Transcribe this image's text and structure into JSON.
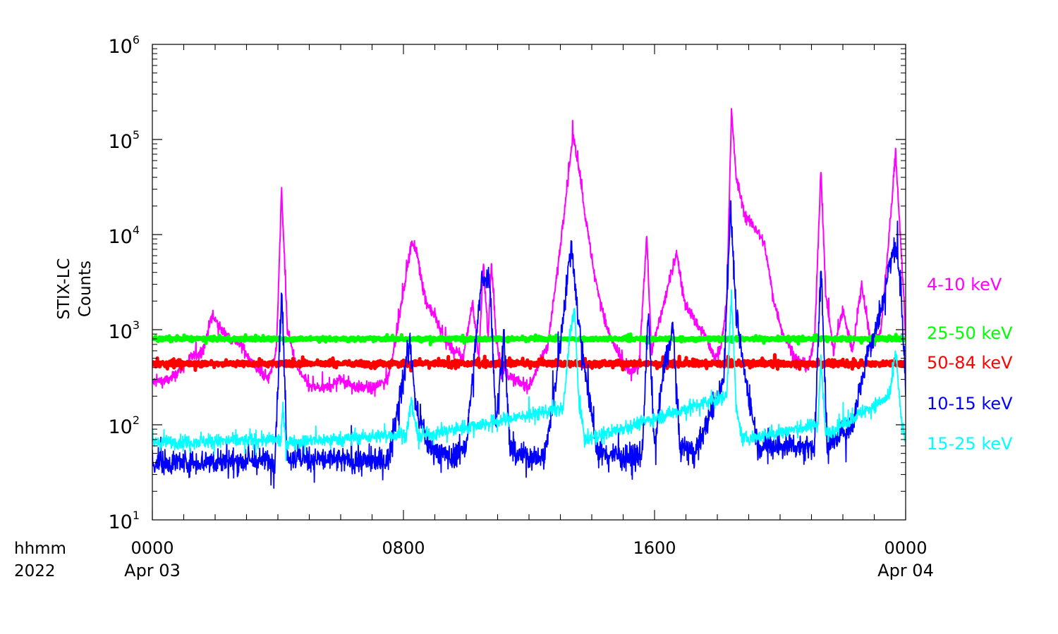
{
  "chart_data": {
    "type": "line",
    "ylabel": [
      "STIX-LC",
      "Counts"
    ],
    "yscale": "log",
    "ylim": [
      10,
      1000000
    ],
    "yticks": [
      {
        "base": "10",
        "exp": "1",
        "value": 10
      },
      {
        "base": "10",
        "exp": "2",
        "value": 100
      },
      {
        "base": "10",
        "exp": "3",
        "value": 1000
      },
      {
        "base": "10",
        "exp": "4",
        "value": 10000
      },
      {
        "base": "10",
        "exp": "5",
        "value": 100000
      },
      {
        "base": "10",
        "exp": "6",
        "value": 1000000
      }
    ],
    "xlim_hours": [
      0,
      24
    ],
    "xaxis_row_labels": [
      "hhmm",
      "2022"
    ],
    "xticks": [
      {
        "hour": 0,
        "time": "0000",
        "date": "Apr 03"
      },
      {
        "hour": 8,
        "time": "0800",
        "date": ""
      },
      {
        "hour": 16,
        "time": "1600",
        "date": ""
      },
      {
        "hour": 24,
        "time": "0000",
        "date": "Apr 04"
      }
    ],
    "grid": false,
    "legend": "right, outside plot",
    "series": [
      {
        "name": "4-10 keV",
        "color": "#ff00ff",
        "base": 300,
        "points": [
          [
            0.0,
            280
          ],
          [
            0.6,
            300
          ],
          [
            1.2,
            500
          ],
          [
            1.6,
            600
          ],
          [
            1.9,
            1400
          ],
          [
            2.3,
            900
          ],
          [
            2.8,
            700
          ],
          [
            3.3,
            400
          ],
          [
            3.7,
            300
          ],
          [
            3.95,
            600
          ],
          [
            4.12,
            30000
          ],
          [
            4.3,
            1000
          ],
          [
            4.6,
            400
          ],
          [
            5.0,
            250
          ],
          [
            5.5,
            240
          ],
          [
            6.0,
            300
          ],
          [
            6.5,
            250
          ],
          [
            7.0,
            240
          ],
          [
            7.5,
            300
          ],
          [
            7.8,
            1000
          ],
          [
            8.1,
            4000
          ],
          [
            8.25,
            8500
          ],
          [
            8.45,
            6000
          ],
          [
            8.7,
            2000
          ],
          [
            9.0,
            1400
          ],
          [
            9.3,
            800
          ],
          [
            9.6,
            600
          ],
          [
            9.9,
            500
          ],
          [
            10.2,
            2000
          ],
          [
            10.4,
            500
          ],
          [
            10.55,
            5000
          ],
          [
            10.7,
            800
          ],
          [
            10.8,
            5000
          ],
          [
            10.95,
            900
          ],
          [
            11.1,
            400
          ],
          [
            11.5,
            300
          ],
          [
            12.0,
            250
          ],
          [
            12.6,
            700
          ],
          [
            12.9,
            4000
          ],
          [
            13.2,
            30000
          ],
          [
            13.4,
            110000
          ],
          [
            13.6,
            50000
          ],
          [
            13.8,
            15000
          ],
          [
            14.1,
            3500
          ],
          [
            14.5,
            1000
          ],
          [
            14.9,
            500
          ],
          [
            15.2,
            350
          ],
          [
            15.5,
            400
          ],
          [
            15.75,
            10000
          ],
          [
            15.9,
            600
          ],
          [
            16.2,
            1400
          ],
          [
            16.5,
            3500
          ],
          [
            16.7,
            6500
          ],
          [
            16.95,
            2000
          ],
          [
            17.3,
            1200
          ],
          [
            17.6,
            900
          ],
          [
            17.9,
            500
          ],
          [
            18.1,
            600
          ],
          [
            18.3,
            2000
          ],
          [
            18.45,
            200000
          ],
          [
            18.6,
            40000
          ],
          [
            18.9,
            15000
          ],
          [
            19.2,
            12000
          ],
          [
            19.5,
            8000
          ],
          [
            19.8,
            2000
          ],
          [
            20.1,
            900
          ],
          [
            20.5,
            500
          ],
          [
            20.9,
            400
          ],
          [
            21.1,
            800
          ],
          [
            21.3,
            50000
          ],
          [
            21.45,
            2500
          ],
          [
            21.7,
            600
          ],
          [
            22.0,
            1600
          ],
          [
            22.3,
            600
          ],
          [
            22.6,
            3000
          ],
          [
            22.9,
            700
          ],
          [
            23.2,
            900
          ],
          [
            23.4,
            5000
          ],
          [
            23.55,
            20000
          ],
          [
            23.68,
            75000
          ],
          [
            23.8,
            15000
          ],
          [
            23.95,
            2000
          ],
          [
            24.0,
            700
          ]
        ]
      },
      {
        "name": "25-50 keV",
        "color": "#00ff00",
        "base": 800,
        "points": [
          [
            0,
            800
          ],
          [
            24,
            800
          ]
        ]
      },
      {
        "name": "50-84 keV",
        "color": "#ff0000",
        "base": 440,
        "points": [
          [
            0,
            440
          ],
          [
            24,
            440
          ]
        ]
      },
      {
        "name": "10-15 keV",
        "color": "#0000ff",
        "base": 42,
        "points": [
          [
            0.0,
            40
          ],
          [
            3.9,
            42
          ],
          [
            4.12,
            2500
          ],
          [
            4.3,
            45
          ],
          [
            6.2,
            42
          ],
          [
            7.5,
            42
          ],
          [
            8.0,
            300
          ],
          [
            8.2,
            800
          ],
          [
            8.4,
            150
          ],
          [
            8.8,
            60
          ],
          [
            9.5,
            45
          ],
          [
            10.0,
            60
          ],
          [
            10.5,
            3500
          ],
          [
            10.75,
            3500
          ],
          [
            10.95,
            100
          ],
          [
            11.2,
            900
          ],
          [
            11.4,
            50
          ],
          [
            12.5,
            45
          ],
          [
            12.8,
            200
          ],
          [
            13.1,
            1500
          ],
          [
            13.35,
            8500
          ],
          [
            13.55,
            1500
          ],
          [
            13.9,
            200
          ],
          [
            14.2,
            50
          ],
          [
            15.6,
            45
          ],
          [
            15.8,
            1500
          ],
          [
            16.0,
            60
          ],
          [
            16.3,
            400
          ],
          [
            16.6,
            1000
          ],
          [
            16.8,
            60
          ],
          [
            17.3,
            50
          ],
          [
            18.2,
            300
          ],
          [
            18.42,
            20000
          ],
          [
            18.6,
            1500
          ],
          [
            18.9,
            300
          ],
          [
            19.3,
            60
          ],
          [
            21.1,
            60
          ],
          [
            21.3,
            5000
          ],
          [
            21.5,
            60
          ],
          [
            22.3,
            100
          ],
          [
            22.8,
            600
          ],
          [
            23.2,
            1500
          ],
          [
            23.5,
            5000
          ],
          [
            23.68,
            8000
          ],
          [
            23.85,
            3000
          ],
          [
            24.0,
            200
          ]
        ]
      },
      {
        "name": "15-25 keV",
        "color": "#00ffff",
        "base": 65,
        "points": [
          [
            0.0,
            65
          ],
          [
            4.1,
            70
          ],
          [
            4.15,
            150
          ],
          [
            4.25,
            65
          ],
          [
            8.1,
            80
          ],
          [
            8.25,
            180
          ],
          [
            8.45,
            75
          ],
          [
            13.1,
            150
          ],
          [
            13.3,
            900
          ],
          [
            13.45,
            1700
          ],
          [
            13.6,
            150
          ],
          [
            13.8,
            70
          ],
          [
            18.3,
            200
          ],
          [
            18.45,
            2500
          ],
          [
            18.6,
            150
          ],
          [
            18.8,
            70
          ],
          [
            21.2,
            100
          ],
          [
            21.3,
            500
          ],
          [
            21.45,
            80
          ],
          [
            23.5,
            200
          ],
          [
            23.68,
            600
          ],
          [
            23.85,
            120
          ],
          [
            24.0,
            65
          ]
        ]
      }
    ]
  }
}
